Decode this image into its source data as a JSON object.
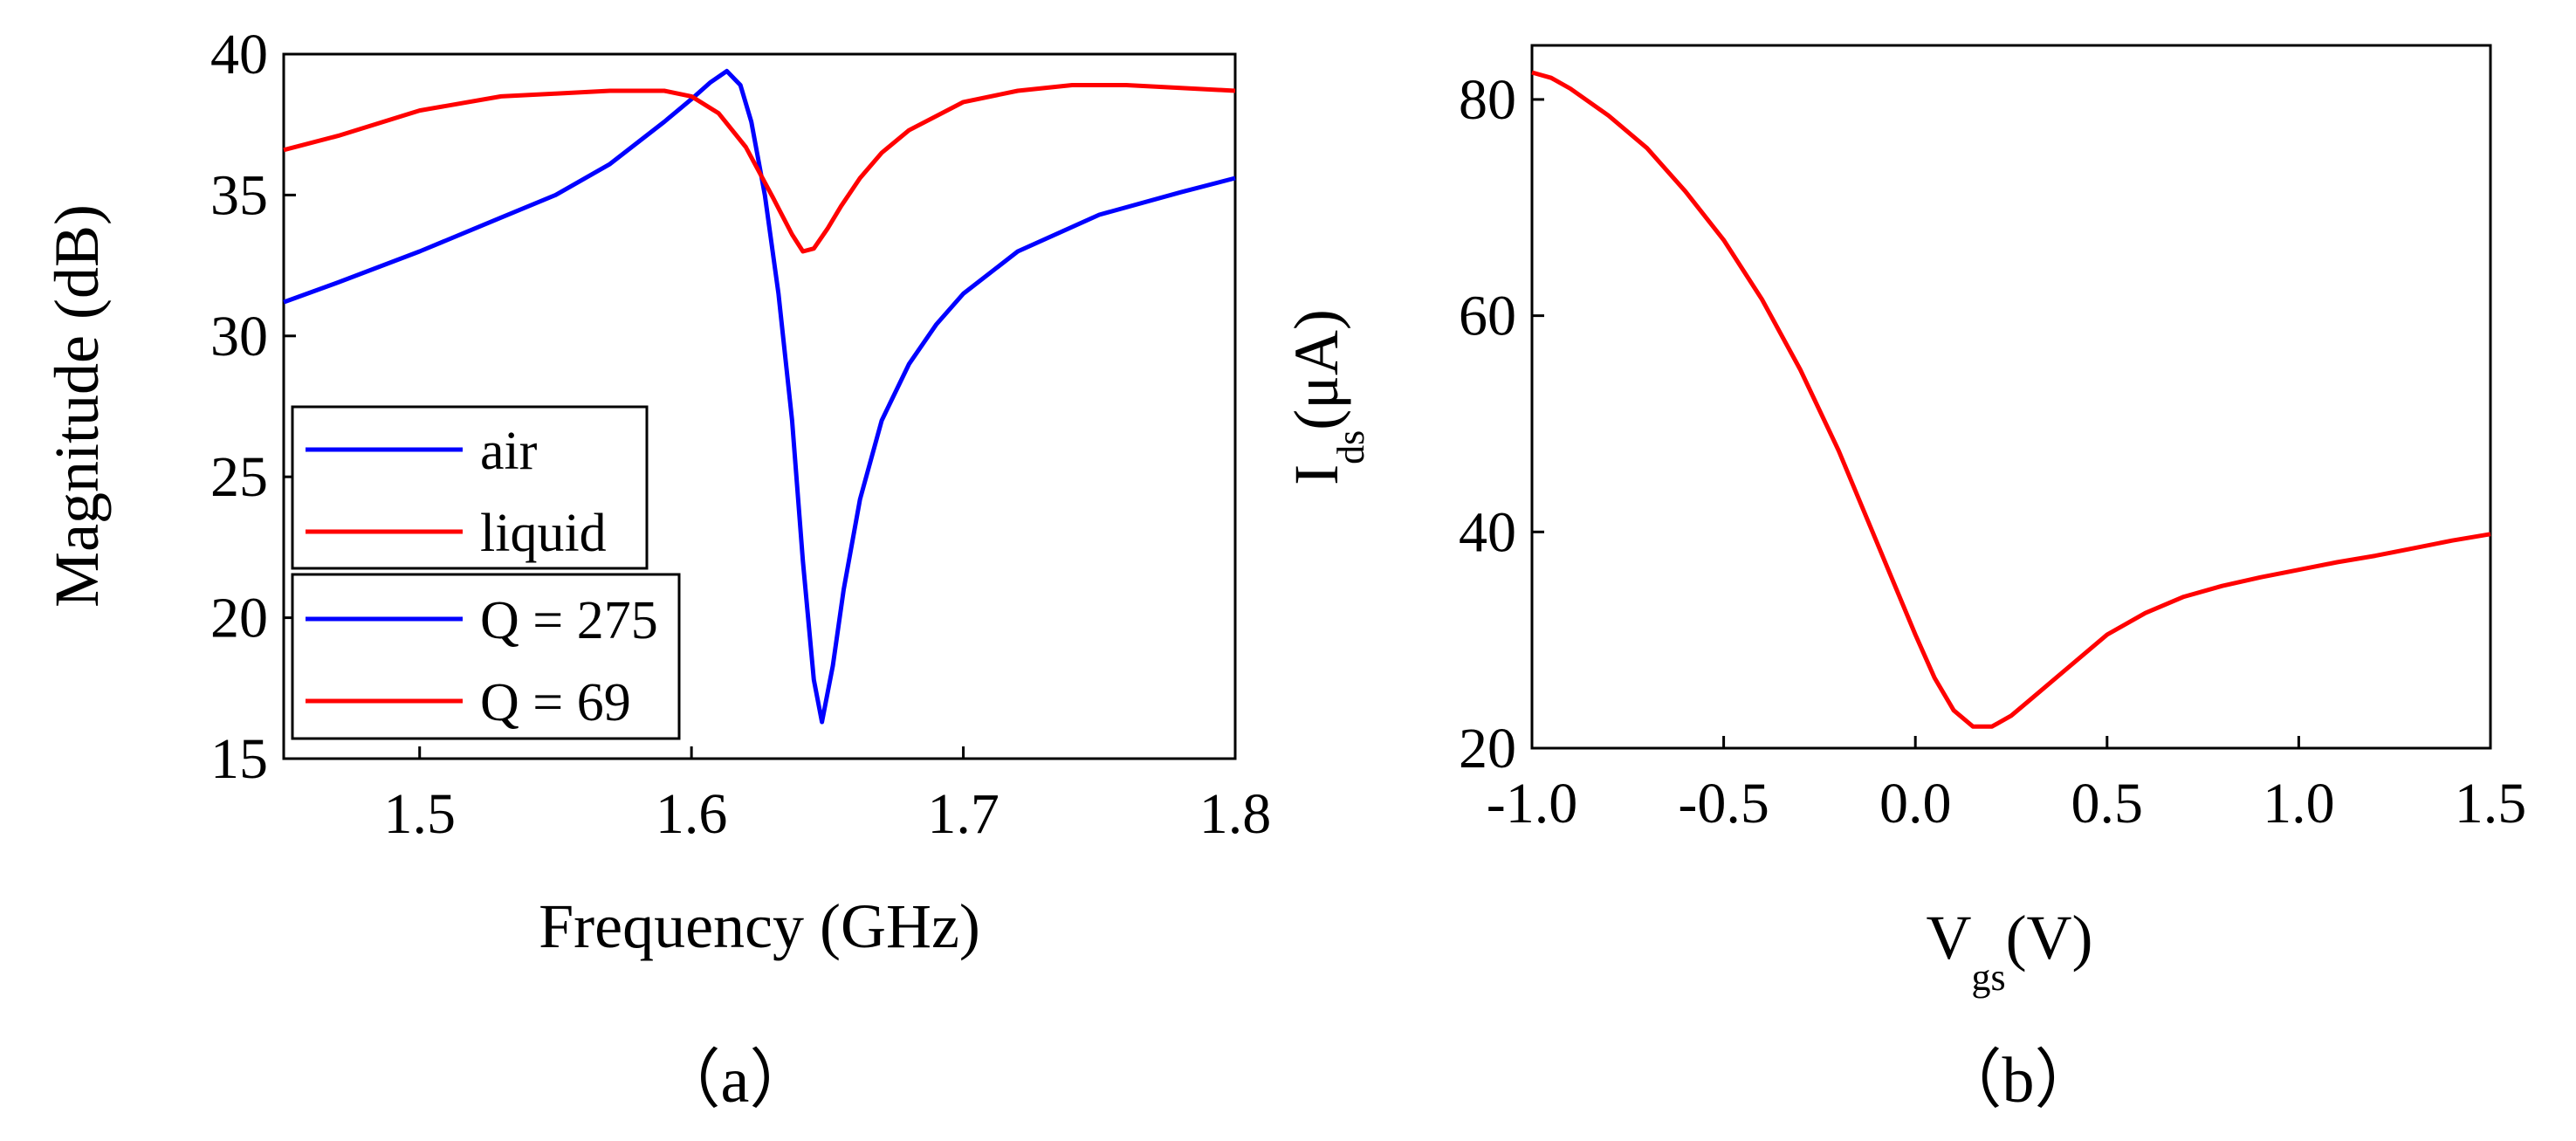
{
  "chart_data": [
    {
      "type": "line",
      "panel_label": "（a）",
      "xlabel": "Frequency (GHz)",
      "ylabel": "Magnitude (dB)",
      "xlim": [
        1.45,
        1.8
      ],
      "ylim": [
        15,
        40
      ],
      "x_ticks": [
        1.5,
        1.6,
        1.7,
        1.8
      ],
      "x_tick_labels": [
        "1.5",
        "1.6",
        "1.7",
        "1.8"
      ],
      "y_ticks": [
        15,
        20,
        25,
        30,
        35,
        40
      ],
      "y_tick_labels": [
        "15",
        "20",
        "25",
        "30",
        "35",
        "40"
      ],
      "grid": false,
      "legend": [
        {
          "name": "air",
          "color": "#0000ff"
        },
        {
          "name": "liquid",
          "color": "#ff0000"
        },
        {
          "name": "Q = 275",
          "color": "#0000ff"
        },
        {
          "name": "Q = 69",
          "color": "#ff0000"
        }
      ],
      "legend_position": "bottom-left",
      "series": [
        {
          "name": "air",
          "color": "#0000ff",
          "x": [
            1.45,
            1.47,
            1.5,
            1.53,
            1.55,
            1.57,
            1.59,
            1.6,
            1.607,
            1.613,
            1.618,
            1.622,
            1.627,
            1.632,
            1.637,
            1.641,
            1.645,
            1.648,
            1.652,
            1.656,
            1.662,
            1.67,
            1.68,
            1.69,
            1.7,
            1.72,
            1.75,
            1.78,
            1.8
          ],
          "y": [
            31.2,
            31.9,
            33.0,
            34.2,
            35.0,
            36.1,
            37.6,
            38.4,
            39.0,
            39.4,
            38.9,
            37.6,
            35.0,
            31.5,
            27.0,
            22.0,
            17.8,
            16.3,
            18.3,
            21.0,
            24.2,
            27.0,
            29.0,
            30.4,
            31.5,
            33.0,
            34.3,
            35.1,
            35.6
          ]
        },
        {
          "name": "liquid",
          "color": "#ff0000",
          "x": [
            1.45,
            1.47,
            1.5,
            1.53,
            1.55,
            1.57,
            1.59,
            1.6,
            1.61,
            1.62,
            1.63,
            1.637,
            1.641,
            1.645,
            1.65,
            1.655,
            1.662,
            1.67,
            1.68,
            1.7,
            1.72,
            1.74,
            1.76,
            1.78,
            1.8
          ],
          "y": [
            36.6,
            37.1,
            38.0,
            38.5,
            38.6,
            38.7,
            38.7,
            38.5,
            37.9,
            36.7,
            34.9,
            33.6,
            33.0,
            33.1,
            33.8,
            34.6,
            35.6,
            36.5,
            37.3,
            38.3,
            38.7,
            38.9,
            38.9,
            38.8,
            38.7
          ]
        }
      ]
    },
    {
      "type": "line",
      "panel_label": "（b）",
      "xlabel": {
        "main": "V",
        "sub": "gs",
        "unit": "(V)"
      },
      "ylabel": {
        "main": "I",
        "sub": "ds",
        "unit": "(μA)"
      },
      "xlim": [
        -1.0,
        1.5
      ],
      "ylim": [
        20,
        85
      ],
      "x_ticks": [
        -1.0,
        -0.5,
        0.0,
        0.5,
        1.0,
        1.5
      ],
      "x_tick_labels": [
        "-1.0",
        "-0.5",
        "0.0",
        "0.5",
        "1.0",
        "1.5"
      ],
      "y_ticks": [
        20,
        40,
        60,
        80
      ],
      "y_tick_labels": [
        "20",
        "40",
        "60",
        "80"
      ],
      "grid": false,
      "series": [
        {
          "name": "Ids",
          "color": "#ff0000",
          "x": [
            -1.0,
            -0.95,
            -0.9,
            -0.8,
            -0.7,
            -0.6,
            -0.5,
            -0.4,
            -0.3,
            -0.2,
            -0.1,
            0.0,
            0.05,
            0.1,
            0.15,
            0.2,
            0.25,
            0.3,
            0.4,
            0.5,
            0.6,
            0.7,
            0.8,
            0.9,
            1.0,
            1.1,
            1.2,
            1.3,
            1.4,
            1.5
          ],
          "y": [
            82.5,
            82.0,
            81.0,
            78.5,
            75.5,
            71.5,
            67.0,
            61.5,
            55.0,
            47.5,
            39.0,
            30.5,
            26.5,
            23.5,
            22.0,
            22.0,
            23.0,
            24.5,
            27.5,
            30.5,
            32.5,
            34.0,
            35.0,
            35.8,
            36.5,
            37.2,
            37.8,
            38.5,
            39.2,
            39.8
          ]
        }
      ]
    }
  ]
}
